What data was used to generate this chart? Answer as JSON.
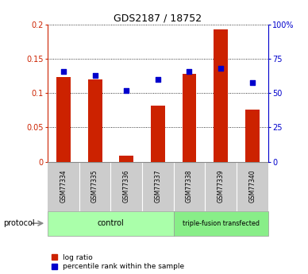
{
  "title": "GDS2187 / 18752",
  "samples": [
    "GSM77334",
    "GSM77335",
    "GSM77336",
    "GSM77337",
    "GSM77338",
    "GSM77339",
    "GSM77340"
  ],
  "log_ratio": [
    0.124,
    0.12,
    0.009,
    0.082,
    0.128,
    0.193,
    0.076
  ],
  "percentile_rank": [
    66,
    63,
    52,
    60,
    66,
    68,
    58
  ],
  "ylim_left": [
    0,
    0.2
  ],
  "ylim_right": [
    0,
    100
  ],
  "yticks_left": [
    0,
    0.05,
    0.1,
    0.15,
    0.2
  ],
  "yticks_right": [
    0,
    25,
    50,
    75,
    100
  ],
  "ytick_labels_left": [
    "0",
    "0.05",
    "0.1",
    "0.15",
    "0.2"
  ],
  "ytick_labels_right": [
    "0",
    "25",
    "50",
    "75",
    "100%"
  ],
  "left_axis_color": "#cc2200",
  "right_axis_color": "#0000cc",
  "bar_color": "#cc2200",
  "dot_color": "#0000cc",
  "sample_bg_color": "#cccccc",
  "control_count": 4,
  "control_label": "control",
  "transfected_label": "triple-fusion transfected",
  "control_color": "#aaffaa",
  "transfected_color": "#88ee88",
  "protocol_label": "protocol",
  "legend_log_ratio": "log ratio",
  "legend_percentile": "percentile rank within the sample",
  "bar_width": 0.45
}
